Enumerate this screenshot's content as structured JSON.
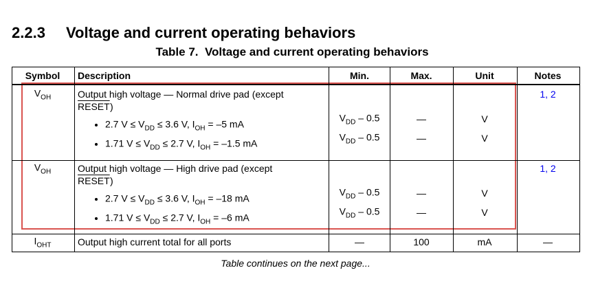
{
  "section": {
    "number": "2.2.3",
    "title": "Voltage and current operating behaviors"
  },
  "table": {
    "caption": "Table 7.  Voltage and current operating behaviors",
    "headers": [
      "Symbol",
      "Description",
      "Min.",
      "Max.",
      "Unit",
      "Notes"
    ],
    "rows": [
      {
        "symbol": [
          "V",
          "OH"
        ],
        "description": "Output high voltage — Normal drive pad (except",
        "signal": "RESET",
        "close": ")",
        "conditions": [
          {
            "text": [
              "2.7 V ≤ V",
              "DD",
              " ≤ 3.6 V, I",
              "OH",
              " = –5 mA"
            ],
            "min": [
              "V",
              "DD",
              " – 0.5"
            ],
            "max": "—",
            "unit": "V"
          },
          {
            "text": [
              "1.71 V ≤ V",
              "DD",
              " ≤ 2.7 V, I",
              "OH",
              " = –1.5 mA"
            ],
            "min": [
              "V",
              "DD",
              " – 0.5"
            ],
            "max": "—",
            "unit": "V"
          }
        ],
        "notes": "1, 2"
      },
      {
        "symbol": [
          "V",
          "OH"
        ],
        "description": "Output high voltage — High drive pad (except",
        "signal": "RESET",
        "close": ")",
        "conditions": [
          {
            "text": [
              "2.7 V ≤ V",
              "DD",
              " ≤ 3.6 V, I",
              "OH",
              " = –18 mA"
            ],
            "min": [
              "V",
              "DD",
              " – 0.5"
            ],
            "max": "—",
            "unit": "V"
          },
          {
            "text": [
              "1.71 V ≤ V",
              "DD",
              " ≤ 2.7 V, I",
              "OH",
              " = –6 mA"
            ],
            "min": [
              "V",
              "DD",
              " – 0.5"
            ],
            "max": "—",
            "unit": "V"
          }
        ],
        "notes": "1, 2"
      }
    ],
    "total_row": {
      "symbol": [
        "I",
        "OHT"
      ],
      "description": "Output high current total for all ports",
      "min": "—",
      "max": 100,
      "unit": "mA",
      "notes": "—"
    }
  },
  "footer": "Table continues on the next page..."
}
